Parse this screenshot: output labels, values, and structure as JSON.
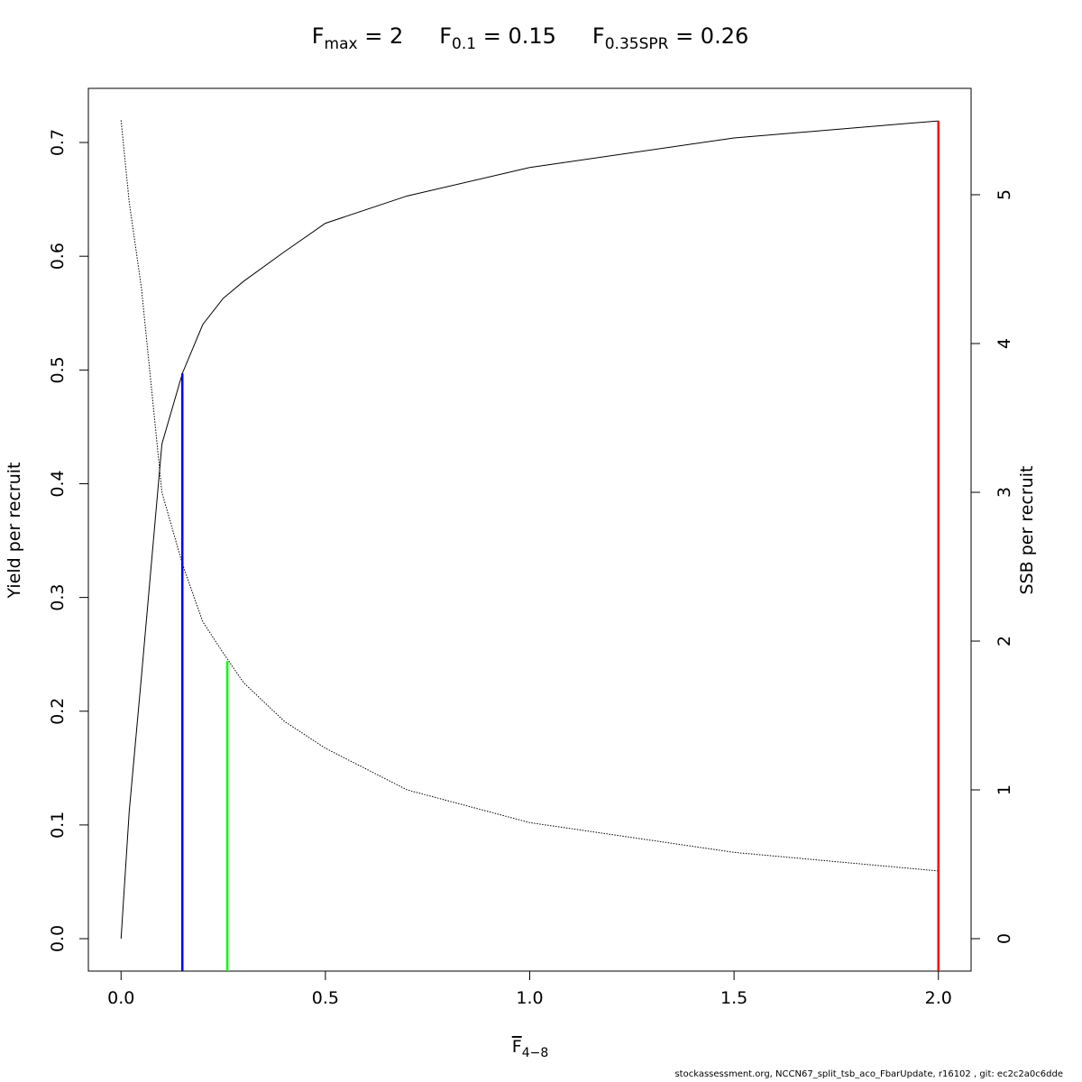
{
  "chart_data": {
    "type": "line",
    "title_parts": [
      {
        "main": "F",
        "sub": "max",
        "rest": " = 2"
      },
      {
        "main": "F",
        "sub": "0.1",
        "rest": " = 0.15"
      },
      {
        "main": "F",
        "sub": "0.35SPR",
        "rest": " = 0.26"
      }
    ],
    "xlabel": {
      "main": "F",
      "sub": "4−8"
    },
    "ylabel": "Yield per recruit",
    "y2label": "SSB per recruit",
    "footer": "stockassessment.org, NCCN67_split_tsb_aco_FbarUpdate, r16102 , git: ec2c2a0c6dde",
    "x": [
      0,
      0.02,
      0.05,
      0.1,
      0.15,
      0.2,
      0.25,
      0.3,
      0.4,
      0.5,
      0.7,
      1.0,
      1.5,
      2.0
    ],
    "series": [
      {
        "color": "#000000",
        "style": "solid",
        "values": [
          0,
          0.112,
          0.231,
          0.435,
          0.497,
          0.54,
          0.563,
          0.578,
          0.604,
          0.629,
          0.653,
          0.678,
          0.704,
          0.719
        ]
      },
      {
        "color": "#000000",
        "style": "dotted",
        "axis": "y2",
        "values": [
          5.5,
          4.95,
          4.37,
          3.0,
          2.52,
          2.13,
          1.92,
          1.72,
          1.46,
          1.28,
          1.0,
          0.78,
          0.58,
          0.455
        ]
      }
    ],
    "reference_lines": [
      {
        "x": 0.15,
        "y": 0.497,
        "color": "#0000ff"
      },
      {
        "x": 0.26,
        "y": 0.244,
        "color": "#00ff00"
      },
      {
        "x": 2.0,
        "y": 0.719,
        "color": "#ff0000"
      }
    ],
    "xlim": [
      -0.08,
      2.08
    ],
    "ylim": [
      -0.0285,
      0.7476
    ],
    "y2lim": [
      -0.218,
      5.715
    ],
    "xticks": [
      {
        "value": 0,
        "label": "0.0"
      },
      0.5,
      {
        "value": 1,
        "label": "1.0"
      },
      1.5,
      {
        "value": 2,
        "label": "2.0"
      }
    ],
    "yticks": [
      {
        "value": 0,
        "label": "0.0"
      },
      0.1,
      0.2,
      0.3,
      0.4,
      0.5,
      0.6,
      0.7
    ],
    "y2ticks": [
      0,
      1,
      2,
      3,
      4,
      5
    ]
  }
}
